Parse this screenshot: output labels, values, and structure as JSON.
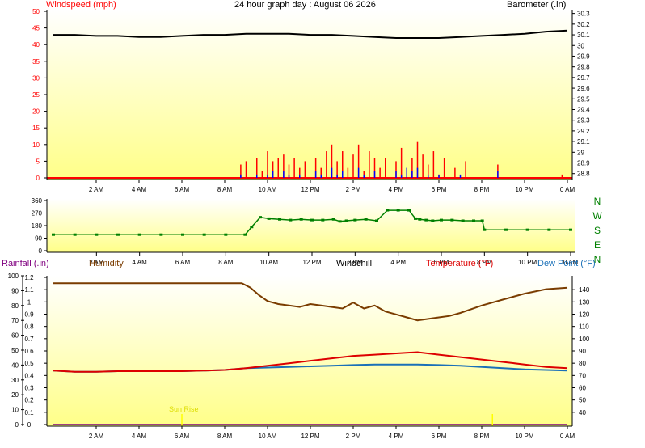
{
  "header": {
    "title": "24 hour graph day : August 06 2026",
    "windspeed_label": "Windspeed (mph)",
    "barometer_label": "Barometer (.in)"
  },
  "x_axis": {
    "tick_labels": [
      "2 AM",
      "4 AM",
      "6 AM",
      "8 AM",
      "10 AM",
      "12 PM",
      "2 PM",
      "4 PM",
      "6 PM",
      "8 PM",
      "10 PM",
      "0 AM"
    ],
    "tick_hours": [
      2,
      4,
      6,
      8,
      10,
      12,
      14,
      16,
      18,
      20,
      22,
      24
    ]
  },
  "colors": {
    "plot_top": "#ffffff",
    "plot_bottom": "#ffff88",
    "wind": "#ff0000",
    "gust": "#0000ff",
    "barometer": "#000000",
    "direction": "#008000",
    "humidity": "#7a3c00",
    "temperature": "#dd0000",
    "dewpoint": "#1a70b8",
    "rainfall": "#800080",
    "windchill": "#000000",
    "sun": "#ffff00"
  },
  "chart_data": [
    {
      "type": "line",
      "title": "24 hour graph day : August 06 2026",
      "x_unit": "hour",
      "series": [
        {
          "name": "Windspeed (mph)",
          "axis": "left",
          "x": [
            0,
            8.5,
            8.75,
            9,
            9.25,
            9.5,
            9.75,
            10,
            10.25,
            10.5,
            10.75,
            11,
            11.25,
            11.5,
            11.75,
            12,
            12.25,
            12.5,
            12.75,
            13,
            13.25,
            13.5,
            13.75,
            14,
            14.25,
            14.5,
            14.75,
            15,
            15.25,
            15.5,
            15.75,
            16,
            16.25,
            16.5,
            16.75,
            17,
            17.25,
            17.5,
            17.75,
            18,
            18.25,
            18.5,
            18.75,
            19,
            19.25,
            19.5,
            20,
            20.5,
            20.75,
            21,
            22,
            23,
            23.75,
            24
          ],
          "values": [
            0,
            0,
            4,
            5,
            0,
            6,
            2,
            8,
            5,
            6,
            7,
            4,
            6,
            3,
            5,
            0,
            6,
            3,
            8,
            10,
            5,
            8,
            3,
            7,
            10,
            2,
            8,
            6,
            3,
            6,
            0,
            5,
            9,
            3,
            6,
            11,
            7,
            4,
            8,
            1,
            6,
            0,
            3,
            0,
            5,
            0,
            0,
            0,
            4,
            0,
            0,
            0,
            1,
            0
          ]
        },
        {
          "name": "Wind gust",
          "axis": "left",
          "x": [
            0,
            8.75,
            9,
            9.5,
            10,
            10.25,
            10.5,
            10.75,
            11,
            11.5,
            12,
            12.25,
            12.5,
            13,
            13.25,
            13.5,
            14,
            14.25,
            14.5,
            15,
            15.25,
            16,
            16.25,
            16.5,
            16.75,
            17,
            17.5,
            18,
            18.5,
            19,
            20.75,
            21,
            24
          ],
          "values": [
            0,
            1,
            0,
            1,
            1,
            2,
            0,
            2,
            1,
            1,
            0,
            2,
            1,
            3,
            1,
            2,
            0,
            3,
            1,
            2,
            0,
            2,
            1,
            3,
            2,
            3,
            1,
            1,
            0,
            1,
            2,
            0,
            0
          ]
        },
        {
          "name": "Barometer (.in)",
          "axis": "right",
          "x": [
            0,
            1,
            2,
            3,
            4,
            5,
            6,
            7,
            8,
            9,
            10,
            11,
            12,
            13,
            14,
            15,
            16,
            17,
            18,
            19,
            20,
            21,
            22,
            23,
            24
          ],
          "values": [
            30.1,
            30.1,
            30.09,
            30.09,
            30.08,
            30.08,
            30.09,
            30.1,
            30.1,
            30.11,
            30.11,
            30.11,
            30.1,
            30.1,
            30.09,
            30.08,
            30.07,
            30.07,
            30.07,
            30.08,
            30.09,
            30.1,
            30.11,
            30.13,
            30.14
          ]
        }
      ],
      "y_left": {
        "label": "Windspeed (mph)",
        "ticks": [
          0,
          5,
          10,
          15,
          20,
          25,
          30,
          35,
          40,
          45,
          50
        ],
        "ylim": [
          0,
          50
        ]
      },
      "y_right": {
        "label": "Barometer (.in)",
        "ticks": [
          "28.8",
          "28.9",
          "29",
          "29.1",
          "29.2",
          "29.3",
          "29.4",
          "29.5",
          "29.6",
          "29.7",
          "29.8",
          "29.9",
          "30",
          "30.1",
          "30.2",
          "30.3"
        ],
        "ylim": [
          28.76,
          30.32
        ]
      }
    },
    {
      "type": "scatter",
      "x_unit": "hour",
      "series": [
        {
          "name": "Wind direction",
          "x": [
            0,
            1,
            2,
            3,
            4,
            5,
            6,
            7,
            8,
            8.9,
            9.2,
            9.6,
            10,
            10.5,
            11,
            11.5,
            12,
            12.5,
            13,
            13.3,
            13.6,
            14,
            14.5,
            15,
            15.5,
            16,
            16.5,
            16.8,
            17,
            17.3,
            17.6,
            18,
            18.5,
            19,
            19.5,
            19.9,
            20,
            21,
            22,
            23,
            24
          ],
          "values": [
            115,
            115,
            115,
            115,
            115,
            115,
            115,
            115,
            115,
            115,
            170,
            240,
            230,
            225,
            220,
            225,
            220,
            220,
            225,
            210,
            215,
            220,
            225,
            215,
            290,
            290,
            290,
            230,
            225,
            220,
            215,
            220,
            220,
            215,
            215,
            215,
            150,
            150,
            150,
            150,
            150
          ]
        }
      ],
      "y_left": {
        "ticks": [
          0,
          90,
          180,
          270,
          360
        ],
        "ylim": [
          0,
          360
        ]
      },
      "y_right": {
        "ticks": [
          "N",
          "W",
          "S",
          "E",
          "N"
        ]
      }
    },
    {
      "type": "line",
      "x_unit": "hour",
      "series": [
        {
          "name": "Humidity",
          "x": [
            0,
            1,
            2,
            3,
            4,
            5,
            6,
            7,
            8,
            8.8,
            9.2,
            9.6,
            10,
            10.5,
            11,
            11.5,
            12,
            12.5,
            13,
            13.5,
            14,
            14.5,
            15,
            15.5,
            16,
            16.5,
            17,
            17.5,
            18,
            18.5,
            19,
            20,
            21,
            22,
            23,
            24
          ],
          "values": [
            95,
            95,
            95,
            95,
            95,
            95,
            95,
            95,
            95,
            95,
            92,
            87,
            83,
            81,
            80,
            79,
            81,
            80,
            79,
            78,
            82,
            78,
            80,
            76,
            74,
            72,
            70,
            71,
            72,
            73,
            75,
            80,
            84,
            88,
            91,
            92
          ]
        },
        {
          "name": "Temperature (°F)",
          "x": [
            0,
            1,
            2,
            3,
            4,
            5,
            6,
            7,
            8,
            9,
            10,
            11,
            12,
            13,
            14,
            15,
            16,
            17,
            18,
            19,
            20,
            21,
            22,
            23,
            24
          ],
          "values": [
            74,
            73,
            73,
            73.5,
            73.5,
            73.5,
            73.5,
            74,
            74.5,
            76,
            78,
            80,
            82,
            84,
            86,
            87,
            88,
            89,
            87,
            85,
            83,
            81,
            79,
            77,
            76
          ]
        },
        {
          "name": "Dew Point (°F)",
          "x": [
            0,
            1,
            2,
            3,
            4,
            5,
            6,
            7,
            8,
            9,
            10,
            11,
            12,
            13,
            14,
            15,
            16,
            17,
            18,
            19,
            20,
            21,
            22,
            23,
            24
          ],
          "values": [
            74,
            73,
            73,
            73.5,
            73.5,
            73.5,
            73.5,
            74,
            74.5,
            76,
            76.5,
            77,
            77.5,
            78,
            78.5,
            79,
            79,
            79,
            78.5,
            78,
            77,
            76,
            75,
            74.5,
            74
          ]
        },
        {
          "name": "Rainfall (.in)",
          "x": [
            0,
            24
          ],
          "values": [
            0,
            0
          ]
        }
      ],
      "y_left": {
        "label": "Rainfall (.in)",
        "ticks": [
          "0",
          "0.1",
          "0.2",
          "0.3",
          "0.4",
          "0.5",
          "0.6",
          "0.7",
          "0.8",
          "0.9",
          "1",
          "1.1",
          "1.2"
        ]
      },
      "y_humidity": {
        "label": "Humidity",
        "ticks": [
          0,
          10,
          20,
          30,
          40,
          50,
          60,
          70,
          80,
          90,
          100
        ],
        "ylim": [
          0,
          100
        ]
      },
      "y_right": {
        "label": "Temperature (°F)",
        "ticks": [
          40,
          50,
          60,
          70,
          80,
          90,
          100,
          110,
          120,
          130,
          140
        ],
        "ylim": [
          30,
          150
        ]
      },
      "labels": {
        "windchill": "Windchill",
        "dewpoint": "Dew Point (°F)",
        "sun_rise": "Sun Rise"
      },
      "sun_markers": [
        6,
        20.5
      ]
    }
  ]
}
